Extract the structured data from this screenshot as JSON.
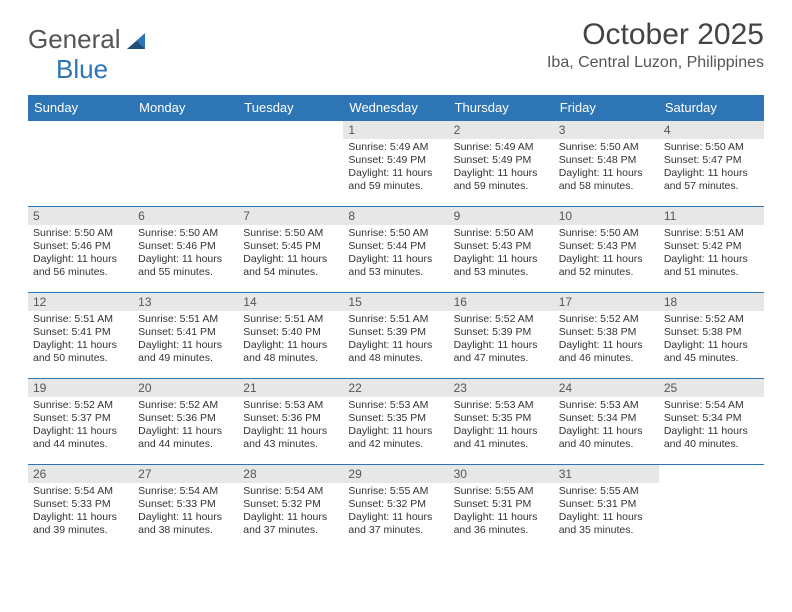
{
  "brand": {
    "part1": "General",
    "part2": "Blue"
  },
  "title": "October 2025",
  "location": "Iba, Central Luzon, Philippines",
  "colors": {
    "header_bg": "#2e75b6",
    "header_text": "#ffffff",
    "daynum_bg": "#e7e7e7",
    "row_border": "#2e75b6",
    "text": "#333333",
    "background": "#ffffff"
  },
  "weekdays": [
    "Sunday",
    "Monday",
    "Tuesday",
    "Wednesday",
    "Thursday",
    "Friday",
    "Saturday"
  ],
  "weeks": [
    [
      null,
      null,
      null,
      {
        "n": "1",
        "sr": "Sunrise: 5:49 AM",
        "ss": "Sunset: 5:49 PM",
        "dl": "Daylight: 11 hours and 59 minutes."
      },
      {
        "n": "2",
        "sr": "Sunrise: 5:49 AM",
        "ss": "Sunset: 5:49 PM",
        "dl": "Daylight: 11 hours and 59 minutes."
      },
      {
        "n": "3",
        "sr": "Sunrise: 5:50 AM",
        "ss": "Sunset: 5:48 PM",
        "dl": "Daylight: 11 hours and 58 minutes."
      },
      {
        "n": "4",
        "sr": "Sunrise: 5:50 AM",
        "ss": "Sunset: 5:47 PM",
        "dl": "Daylight: 11 hours and 57 minutes."
      }
    ],
    [
      {
        "n": "5",
        "sr": "Sunrise: 5:50 AM",
        "ss": "Sunset: 5:46 PM",
        "dl": "Daylight: 11 hours and 56 minutes."
      },
      {
        "n": "6",
        "sr": "Sunrise: 5:50 AM",
        "ss": "Sunset: 5:46 PM",
        "dl": "Daylight: 11 hours and 55 minutes."
      },
      {
        "n": "7",
        "sr": "Sunrise: 5:50 AM",
        "ss": "Sunset: 5:45 PM",
        "dl": "Daylight: 11 hours and 54 minutes."
      },
      {
        "n": "8",
        "sr": "Sunrise: 5:50 AM",
        "ss": "Sunset: 5:44 PM",
        "dl": "Daylight: 11 hours and 53 minutes."
      },
      {
        "n": "9",
        "sr": "Sunrise: 5:50 AM",
        "ss": "Sunset: 5:43 PM",
        "dl": "Daylight: 11 hours and 53 minutes."
      },
      {
        "n": "10",
        "sr": "Sunrise: 5:50 AM",
        "ss": "Sunset: 5:43 PM",
        "dl": "Daylight: 11 hours and 52 minutes."
      },
      {
        "n": "11",
        "sr": "Sunrise: 5:51 AM",
        "ss": "Sunset: 5:42 PM",
        "dl": "Daylight: 11 hours and 51 minutes."
      }
    ],
    [
      {
        "n": "12",
        "sr": "Sunrise: 5:51 AM",
        "ss": "Sunset: 5:41 PM",
        "dl": "Daylight: 11 hours and 50 minutes."
      },
      {
        "n": "13",
        "sr": "Sunrise: 5:51 AM",
        "ss": "Sunset: 5:41 PM",
        "dl": "Daylight: 11 hours and 49 minutes."
      },
      {
        "n": "14",
        "sr": "Sunrise: 5:51 AM",
        "ss": "Sunset: 5:40 PM",
        "dl": "Daylight: 11 hours and 48 minutes."
      },
      {
        "n": "15",
        "sr": "Sunrise: 5:51 AM",
        "ss": "Sunset: 5:39 PM",
        "dl": "Daylight: 11 hours and 48 minutes."
      },
      {
        "n": "16",
        "sr": "Sunrise: 5:52 AM",
        "ss": "Sunset: 5:39 PM",
        "dl": "Daylight: 11 hours and 47 minutes."
      },
      {
        "n": "17",
        "sr": "Sunrise: 5:52 AM",
        "ss": "Sunset: 5:38 PM",
        "dl": "Daylight: 11 hours and 46 minutes."
      },
      {
        "n": "18",
        "sr": "Sunrise: 5:52 AM",
        "ss": "Sunset: 5:38 PM",
        "dl": "Daylight: 11 hours and 45 minutes."
      }
    ],
    [
      {
        "n": "19",
        "sr": "Sunrise: 5:52 AM",
        "ss": "Sunset: 5:37 PM",
        "dl": "Daylight: 11 hours and 44 minutes."
      },
      {
        "n": "20",
        "sr": "Sunrise: 5:52 AM",
        "ss": "Sunset: 5:36 PM",
        "dl": "Daylight: 11 hours and 44 minutes."
      },
      {
        "n": "21",
        "sr": "Sunrise: 5:53 AM",
        "ss": "Sunset: 5:36 PM",
        "dl": "Daylight: 11 hours and 43 minutes."
      },
      {
        "n": "22",
        "sr": "Sunrise: 5:53 AM",
        "ss": "Sunset: 5:35 PM",
        "dl": "Daylight: 11 hours and 42 minutes."
      },
      {
        "n": "23",
        "sr": "Sunrise: 5:53 AM",
        "ss": "Sunset: 5:35 PM",
        "dl": "Daylight: 11 hours and 41 minutes."
      },
      {
        "n": "24",
        "sr": "Sunrise: 5:53 AM",
        "ss": "Sunset: 5:34 PM",
        "dl": "Daylight: 11 hours and 40 minutes."
      },
      {
        "n": "25",
        "sr": "Sunrise: 5:54 AM",
        "ss": "Sunset: 5:34 PM",
        "dl": "Daylight: 11 hours and 40 minutes."
      }
    ],
    [
      {
        "n": "26",
        "sr": "Sunrise: 5:54 AM",
        "ss": "Sunset: 5:33 PM",
        "dl": "Daylight: 11 hours and 39 minutes."
      },
      {
        "n": "27",
        "sr": "Sunrise: 5:54 AM",
        "ss": "Sunset: 5:33 PM",
        "dl": "Daylight: 11 hours and 38 minutes."
      },
      {
        "n": "28",
        "sr": "Sunrise: 5:54 AM",
        "ss": "Sunset: 5:32 PM",
        "dl": "Daylight: 11 hours and 37 minutes."
      },
      {
        "n": "29",
        "sr": "Sunrise: 5:55 AM",
        "ss": "Sunset: 5:32 PM",
        "dl": "Daylight: 11 hours and 37 minutes."
      },
      {
        "n": "30",
        "sr": "Sunrise: 5:55 AM",
        "ss": "Sunset: 5:31 PM",
        "dl": "Daylight: 11 hours and 36 minutes."
      },
      {
        "n": "31",
        "sr": "Sunrise: 5:55 AM",
        "ss": "Sunset: 5:31 PM",
        "dl": "Daylight: 11 hours and 35 minutes."
      },
      null
    ]
  ]
}
